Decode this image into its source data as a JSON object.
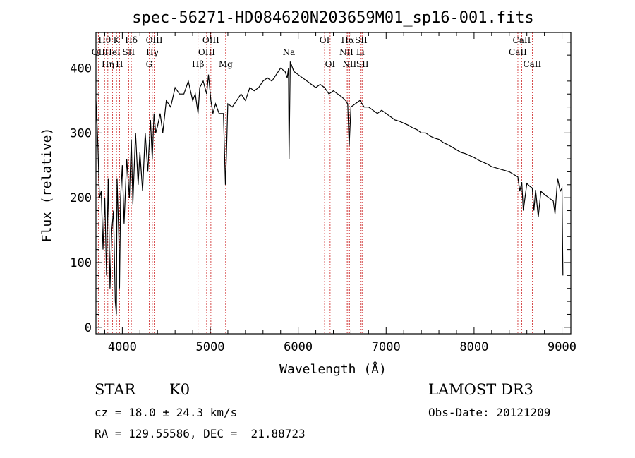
{
  "chart_data": {
    "type": "line",
    "title": "spec-56271-HD084620N203659M01_sp16-001.fits",
    "xlabel": "Wavelength (Å)",
    "ylabel": "Flux (relative)",
    "xlim": [
      3700,
      9100
    ],
    "ylim": [
      -10,
      455
    ],
    "xticks": [
      4000,
      5000,
      6000,
      7000,
      8000,
      9000
    ],
    "yticks": [
      0,
      100,
      200,
      300,
      400
    ],
    "grid": false,
    "series": [
      {
        "name": "flux",
        "x": [
          3700,
          3720,
          3740,
          3760,
          3780,
          3800,
          3820,
          3840,
          3860,
          3880,
          3900,
          3920,
          3933,
          3940,
          3960,
          3968,
          3980,
          4000,
          4020,
          4050,
          4080,
          4102,
          4120,
          4150,
          4180,
          4200,
          4230,
          4260,
          4290,
          4320,
          4340,
          4360,
          4380,
          4400,
          4430,
          4460,
          4500,
          4550,
          4600,
          4650,
          4700,
          4750,
          4800,
          4830,
          4861,
          4880,
          4920,
          4959,
          4980,
          5007,
          5030,
          5060,
          5100,
          5150,
          5172,
          5183,
          5200,
          5250,
          5300,
          5350,
          5400,
          5450,
          5500,
          5550,
          5600,
          5650,
          5700,
          5750,
          5800,
          5850,
          5875,
          5890,
          5896,
          5910,
          5950,
          6000,
          6050,
          6100,
          6150,
          6200,
          6250,
          6300,
          6350,
          6400,
          6450,
          6500,
          6540,
          6563,
          6580,
          6600,
          6650,
          6700,
          6750,
          6800,
          6850,
          6900,
          6950,
          7000,
          7050,
          7100,
          7150,
          7200,
          7250,
          7300,
          7350,
          7400,
          7450,
          7500,
          7550,
          7600,
          7650,
          7700,
          7750,
          7800,
          7850,
          7900,
          7950,
          8000,
          8050,
          8100,
          8150,
          8200,
          8250,
          8300,
          8350,
          8400,
          8450,
          8498,
          8520,
          8542,
          8560,
          8600,
          8630,
          8662,
          8680,
          8700,
          8730,
          8760,
          8800,
          8850,
          8900,
          8920,
          8950,
          8980,
          9000,
          9010
        ],
        "values": [
          350,
          290,
          200,
          210,
          120,
          200,
          80,
          230,
          60,
          150,
          180,
          40,
          20,
          230,
          140,
          60,
          200,
          250,
          160,
          260,
          200,
          290,
          190,
          300,
          220,
          270,
          210,
          300,
          240,
          320,
          260,
          330,
          300,
          310,
          330,
          300,
          350,
          340,
          370,
          360,
          360,
          380,
          350,
          360,
          330,
          370,
          380,
          360,
          390,
          350,
          330,
          345,
          330,
          330,
          220,
          260,
          345,
          340,
          350,
          360,
          350,
          370,
          365,
          370,
          380,
          385,
          380,
          390,
          400,
          395,
          385,
          400,
          260,
          410,
          395,
          390,
          385,
          380,
          375,
          370,
          375,
          370,
          360,
          365,
          360,
          355,
          350,
          345,
          280,
          340,
          345,
          350,
          340,
          340,
          335,
          330,
          335,
          330,
          325,
          320,
          318,
          315,
          312,
          308,
          305,
          300,
          300,
          295,
          292,
          290,
          285,
          282,
          278,
          274,
          270,
          268,
          265,
          262,
          258,
          255,
          252,
          248,
          246,
          244,
          242,
          240,
          236,
          232,
          210,
          224,
          180,
          222,
          218,
          215,
          180,
          212,
          170,
          210,
          205,
          200,
          195,
          175,
          230,
          210,
          215,
          80
        ]
      }
    ],
    "emission_lines": [
      {
        "label": "OII",
        "wavelength": 3727,
        "row": 2
      },
      {
        "label": "Hθ",
        "wavelength": 3798,
        "row": 1
      },
      {
        "label": "Hη",
        "wavelength": 3835,
        "row": 3
      },
      {
        "label": "HeI",
        "wavelength": 3889,
        "row": 2
      },
      {
        "label": "K",
        "wavelength": 3934,
        "row": 1
      },
      {
        "label": "H",
        "wavelength": 3968,
        "row": 3
      },
      {
        "label": "SII",
        "wavelength": 4072,
        "row": 2
      },
      {
        "label": "Hδ",
        "wavelength": 4102,
        "row": 1
      },
      {
        "label": "G",
        "wavelength": 4305,
        "row": 3
      },
      {
        "label": "Hγ",
        "wavelength": 4341,
        "row": 2
      },
      {
        "label": "OIII",
        "wavelength": 4363,
        "row": 1
      },
      {
        "label": "Hβ",
        "wavelength": 4861,
        "row": 3
      },
      {
        "label": "OIII",
        "wavelength": 4959,
        "row": 2
      },
      {
        "label": "OIII",
        "wavelength": 5007,
        "row": 1
      },
      {
        "label": "Mg",
        "wavelength": 5175,
        "row": 3
      },
      {
        "label": "Na",
        "wavelength": 5894,
        "row": 2
      },
      {
        "label": "OI",
        "wavelength": 6300,
        "row": 1
      },
      {
        "label": "OI",
        "wavelength": 6363,
        "row": 3
      },
      {
        "label": "NII",
        "wavelength": 6548,
        "row": 2
      },
      {
        "label": "Hα",
        "wavelength": 6563,
        "row": 1
      },
      {
        "label": "NII",
        "wavelength": 6583,
        "row": 3
      },
      {
        "label": "Li",
        "wavelength": 6707,
        "row": 2
      },
      {
        "label": "SII",
        "wavelength": 6716,
        "row": 1
      },
      {
        "label": "SII",
        "wavelength": 6731,
        "row": 3
      },
      {
        "label": "CaII",
        "wavelength": 8498,
        "row": 2
      },
      {
        "label": "CaII",
        "wavelength": 8542,
        "row": 1
      },
      {
        "label": "CaII",
        "wavelength": 8662,
        "row": 3
      }
    ],
    "colors": {
      "line": "#000000",
      "marker": "#cc2222"
    }
  },
  "info": {
    "class": "STAR",
    "subclass": "K0",
    "survey": "LAMOST DR3",
    "cz": "cz = 18.0 ± 24.3 km/s",
    "obs_date": "Obs-Date: 20121209",
    "coords": "RA = 129.55586, DEC =  21.88723"
  }
}
